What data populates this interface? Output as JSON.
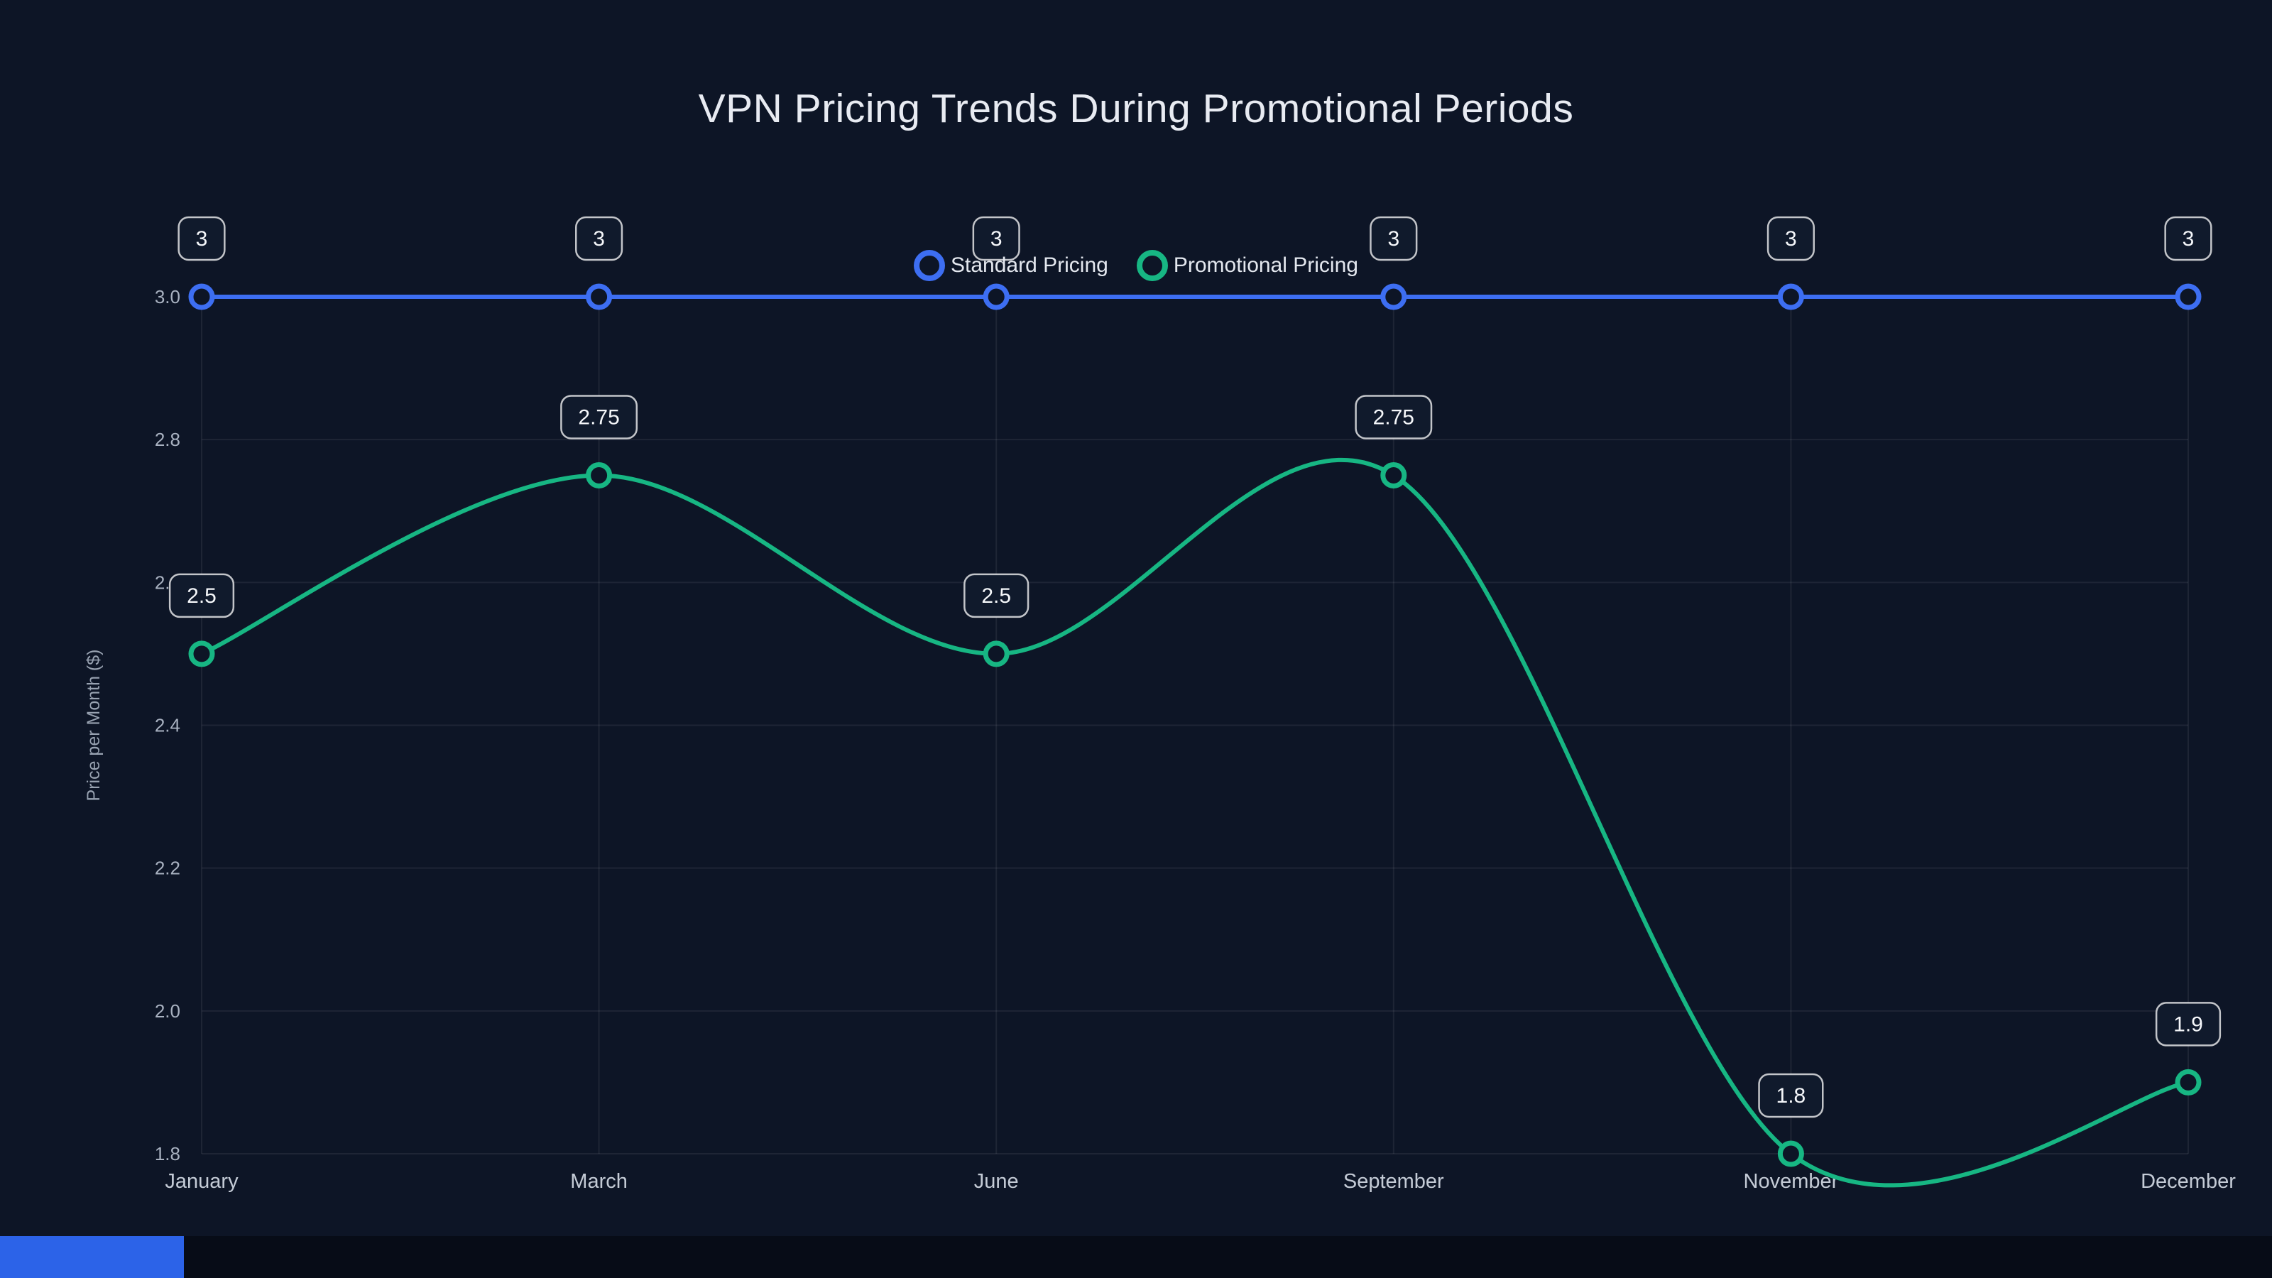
{
  "page": {
    "background": "#0d1526",
    "footer_accent_color": "#2c63e8"
  },
  "chart_data": {
    "type": "line",
    "title": "VPN Pricing Trends During Promotional Periods",
    "xlabel": "",
    "ylabel": "Price per Month ($)",
    "categories": [
      "January",
      "March",
      "June",
      "September",
      "November",
      "December"
    ],
    "series": [
      {
        "name": "Standard Pricing",
        "color": "#3d6ef2",
        "values": [
          3,
          3,
          3,
          3,
          3,
          3
        ]
      },
      {
        "name": "Promotional Pricing",
        "color": "#17b683",
        "values": [
          2.5,
          2.75,
          2.5,
          2.75,
          1.8,
          1.9
        ]
      }
    ],
    "point_labels": [
      [
        "3",
        "3",
        "3",
        "3",
        "3",
        "3"
      ],
      [
        "2.5",
        "2.75",
        "2.5",
        "2.75",
        "1.8",
        "1.9"
      ]
    ],
    "ylim": [
      1.8,
      3.0
    ],
    "yticks": [
      "1.8",
      "2.0",
      "2.2",
      "2.4",
      "2.6",
      "2.8",
      "3.0"
    ],
    "grid": true,
    "smooth": true,
    "legend_position": "top-center"
  }
}
